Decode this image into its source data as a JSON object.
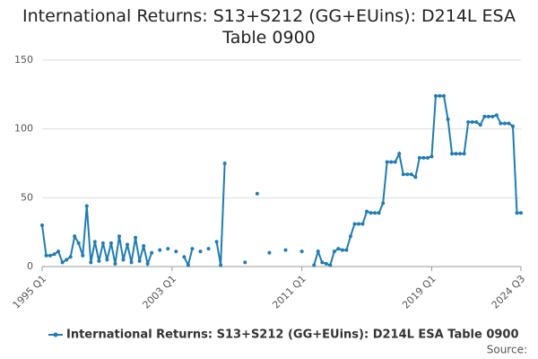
{
  "chart_data": {
    "type": "line",
    "title": "International Returns: S13+S212 (GG+EUins): D214L ESA Table 0900",
    "source": "Source:",
    "categories": [
      "1995 Q1",
      null,
      null,
      null,
      null,
      null,
      null,
      null,
      null,
      null,
      null,
      null,
      null,
      null,
      null,
      null,
      null,
      null,
      null,
      null,
      null,
      null,
      null,
      null,
      null,
      null,
      null,
      null,
      null,
      null,
      null,
      null,
      "2003 Q1",
      null,
      null,
      null,
      null,
      null,
      null,
      null,
      null,
      null,
      null,
      null,
      null,
      null,
      null,
      null,
      null,
      null,
      null,
      null,
      null,
      null,
      null,
      null,
      null,
      null,
      null,
      null,
      null,
      null,
      null,
      null,
      "2011 Q1",
      null,
      null,
      null,
      null,
      null,
      null,
      null,
      null,
      null,
      null,
      null,
      null,
      null,
      null,
      null,
      null,
      null,
      null,
      null,
      null,
      null,
      null,
      null,
      null,
      null,
      null,
      null,
      null,
      null,
      null,
      null,
      "2019 Q1",
      null,
      null,
      null,
      null,
      null,
      null,
      null,
      null,
      null,
      null,
      null,
      null,
      null,
      null,
      null,
      null,
      null,
      null,
      null,
      null,
      null,
      "2024 Q3"
    ],
    "series": [
      {
        "name": "International Returns: S13+S212 (GG+EUins): D214L ESA Table 0900",
        "color": "#1f7cb4",
        "values": [
          30,
          8,
          8,
          9,
          11,
          3,
          5,
          7,
          22,
          17,
          8,
          44,
          3,
          18,
          4,
          17,
          5,
          17,
          2,
          22,
          5,
          16,
          3,
          21,
          4,
          15,
          2,
          10,
          null,
          12,
          null,
          13,
          null,
          11,
          null,
          7,
          1,
          13,
          null,
          11,
          null,
          13,
          null,
          18,
          1,
          75,
          null,
          null,
          null,
          null,
          3,
          null,
          null,
          53,
          null,
          null,
          10,
          null,
          null,
          null,
          12,
          null,
          null,
          null,
          11,
          null,
          null,
          1,
          11,
          3,
          2,
          1,
          11,
          13,
          12,
          12,
          22,
          31,
          31,
          31,
          40,
          39,
          39,
          39,
          46,
          76,
          76,
          76,
          82,
          67,
          67,
          67,
          65,
          79,
          79,
          79,
          80,
          124,
          124,
          124,
          107,
          82,
          82,
          82,
          82,
          105,
          105,
          105,
          103,
          109,
          109,
          109,
          110,
          104,
          104,
          104,
          102,
          39,
          39
        ]
      }
    ],
    "ylim": [
      0,
      150
    ],
    "yticks": [
      0,
      50,
      100,
      150
    ],
    "grid": true
  }
}
